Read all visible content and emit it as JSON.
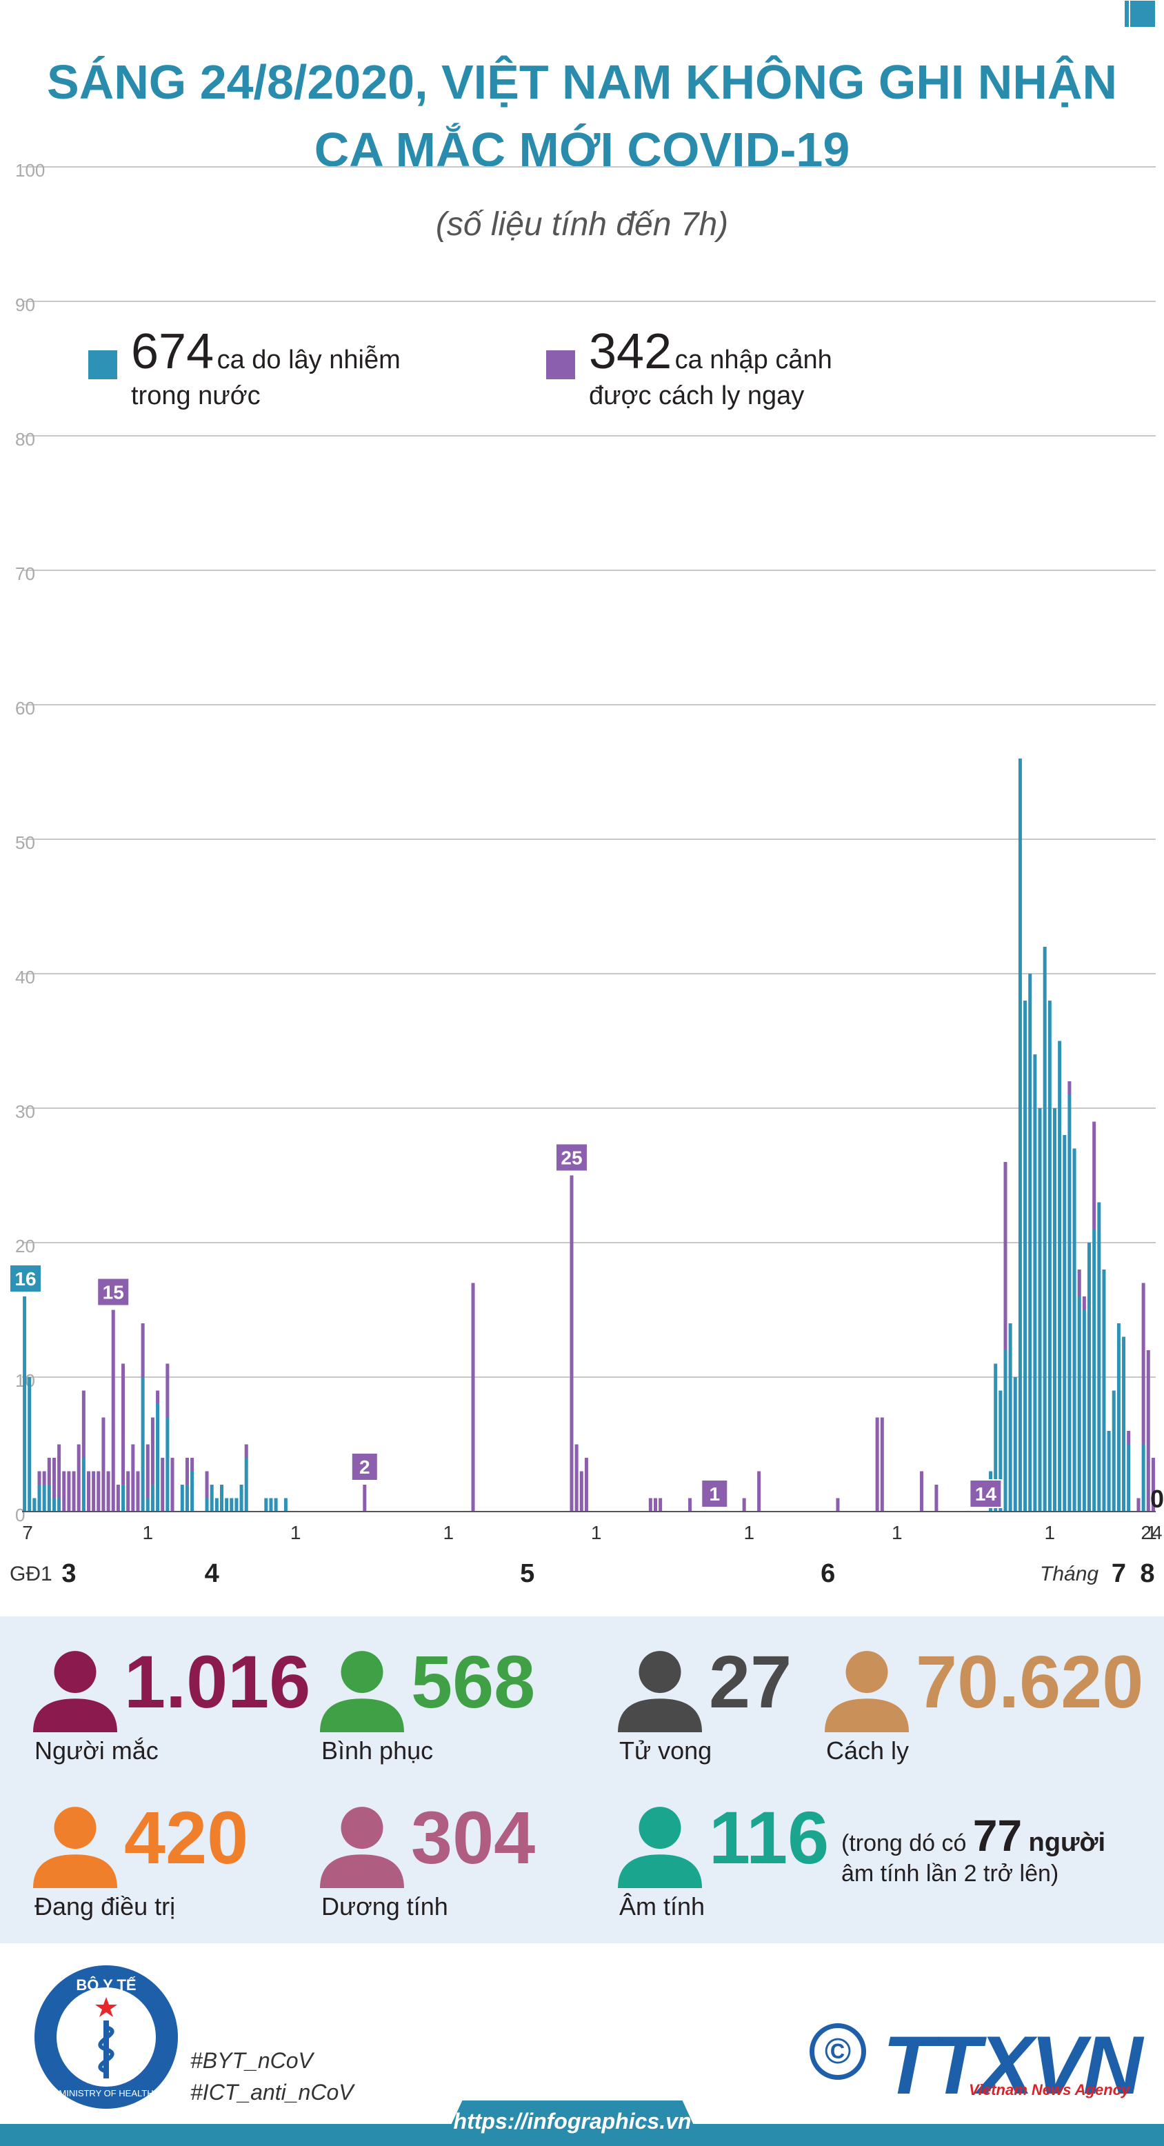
{
  "header": {
    "title_line1": "SÁNG 24/8/2020, VIỆT NAM KHÔNG GHI NHẬN",
    "title_line2": "CA MẮC MỚI COVID-19",
    "subtitle": "(số liệu tính đến 7h)"
  },
  "legend": {
    "domestic": {
      "number": "674",
      "text1": "ca do lây nhiễm",
      "text2": "trong nước",
      "color": "#2d92b5"
    },
    "imported": {
      "number": "342",
      "text1": "ca nhập cảnh",
      "text2": "được cách ly ngay",
      "color": "#8b5fad"
    }
  },
  "chart_data": {
    "type": "bar",
    "stacked": true,
    "ylim": [
      0,
      100
    ],
    "yticks": [
      0,
      10,
      20,
      30,
      40,
      50,
      60,
      70,
      80,
      90,
      100
    ],
    "grid": true,
    "legend_position": "top-left",
    "series": [
      {
        "name": "ca do lây nhiễm trong nước",
        "color": "#2d92b5",
        "values": [
          16,
          10,
          1,
          2,
          2,
          2,
          1,
          1,
          0,
          0,
          0,
          0,
          4,
          0,
          0,
          0,
          0,
          0,
          0,
          0,
          2,
          0,
          0,
          0,
          10,
          1,
          2,
          8,
          0,
          7,
          0,
          0,
          2,
          2,
          3,
          0,
          0,
          1,
          2,
          1,
          2,
          1,
          1,
          1,
          2,
          4,
          0,
          0,
          0,
          1,
          1,
          1,
          0,
          1,
          0,
          0,
          0,
          0,
          0,
          0,
          0,
          0,
          0,
          0,
          0,
          0,
          0,
          0,
          0,
          0,
          0,
          0,
          0,
          0,
          0,
          0,
          0,
          0,
          0,
          0,
          0,
          0,
          0,
          0,
          0,
          0,
          0,
          0,
          0,
          0,
          0,
          0,
          0,
          0,
          0,
          0,
          0,
          0,
          0,
          0,
          0,
          0,
          0,
          0,
          0,
          0,
          0,
          0,
          0,
          0,
          0,
          0,
          0,
          0,
          0,
          0,
          0,
          0,
          0,
          0,
          0,
          0,
          0,
          0,
          0,
          0,
          0,
          0,
          0,
          0,
          0,
          0,
          0,
          0,
          0,
          0,
          0,
          0,
          0,
          0,
          0,
          0,
          0,
          0,
          0,
          0,
          0,
          0,
          0,
          0,
          0,
          0,
          0,
          0,
          0,
          0,
          0,
          0,
          0,
          0,
          0,
          0,
          0,
          0,
          0,
          0,
          0,
          0,
          0,
          0,
          0,
          0,
          0,
          0,
          0,
          0,
          0,
          0,
          0,
          0,
          0,
          0,
          0,
          0,
          0,
          0,
          0,
          0,
          0,
          0,
          0,
          0,
          0,
          0,
          0,
          0,
          3,
          11,
          9,
          12,
          14,
          10,
          56,
          38,
          40,
          34,
          30,
          42,
          38,
          30,
          35,
          28,
          31,
          27,
          16,
          15,
          20,
          21,
          23,
          18,
          6,
          9,
          14,
          13,
          5,
          0,
          0,
          5,
          0,
          0
        ]
      },
      {
        "name": "ca nhập cảnh được cách ly ngay",
        "color": "#8b5fad",
        "values": [
          0,
          0,
          0,
          1,
          1,
          2,
          3,
          4,
          3,
          3,
          3,
          5,
          5,
          3,
          3,
          3,
          7,
          3,
          15,
          2,
          9,
          3,
          5,
          3,
          4,
          4,
          5,
          1,
          4,
          4,
          4,
          0,
          0,
          2,
          1,
          0,
          0,
          2,
          0,
          0,
          0,
          0,
          0,
          0,
          0,
          1,
          0,
          0,
          0,
          0,
          0,
          0,
          0,
          0,
          0,
          0,
          0,
          0,
          0,
          0,
          0,
          0,
          0,
          0,
          0,
          0,
          0,
          0,
          0,
          2,
          0,
          0,
          0,
          0,
          0,
          0,
          0,
          0,
          0,
          0,
          0,
          0,
          0,
          0,
          0,
          0,
          0,
          0,
          0,
          0,
          0,
          17,
          0,
          0,
          0,
          0,
          0,
          0,
          0,
          0,
          0,
          0,
          0,
          0,
          0,
          0,
          0,
          0,
          0,
          0,
          0,
          25,
          5,
          3,
          4,
          0,
          0,
          0,
          0,
          0,
          0,
          0,
          0,
          0,
          0,
          0,
          0,
          1,
          1,
          1,
          0,
          0,
          0,
          0,
          0,
          1,
          0,
          0,
          0,
          0,
          0,
          0,
          0,
          0,
          0,
          0,
          1,
          0,
          0,
          3,
          0,
          0,
          0,
          0,
          0,
          0,
          0,
          0,
          0,
          0,
          0,
          0,
          0,
          0,
          0,
          1,
          0,
          0,
          0,
          0,
          0,
          0,
          0,
          7,
          7,
          0,
          0,
          0,
          0,
          0,
          0,
          0,
          3,
          0,
          0,
          2,
          0,
          0,
          0,
          0,
          0,
          0,
          0,
          0,
          0,
          0,
          0,
          0,
          0,
          14,
          0,
          0,
          0,
          0,
          0,
          0,
          0,
          0,
          0,
          0,
          0,
          0,
          1,
          0,
          2,
          1,
          0,
          8,
          0,
          0,
          0,
          0,
          0,
          0,
          1,
          0,
          1,
          12,
          12,
          4,
          1,
          4,
          0,
          0,
          0,
          0,
          0,
          26,
          2,
          2,
          3,
          2,
          1,
          3,
          2,
          2,
          1,
          3,
          0,
          2,
          3,
          0,
          0,
          0,
          2,
          1,
          0,
          0,
          0,
          0,
          0,
          0
        ]
      }
    ],
    "bar_labels": [
      {
        "bar": 0,
        "text": "16",
        "series": 0
      },
      {
        "bar": 18,
        "text": "15",
        "series": 1
      },
      {
        "bar": 69,
        "text": "2",
        "series": 1
      },
      {
        "bar": 111,
        "text": "25",
        "series": 1
      },
      {
        "bar": 140,
        "text": "1",
        "series": 1
      },
      {
        "bar": 195,
        "text": "14",
        "series": 1
      },
      {
        "bar": 232,
        "text": "26",
        "series": 1
      },
      {
        "bar": 232,
        "text": "56",
        "series": 0
      },
      {
        "bar": 233,
        "text": "38",
        "series": 0
      },
      {
        "bar": 238,
        "text": "42",
        "series": 0
      },
      {
        "bar": 240,
        "text": "31",
        "series": 0
      },
      {
        "bar": 265,
        "text": "5",
        "series": 0
      },
      {
        "bar": 267,
        "text": "0",
        "series": 0
      }
    ],
    "x_day_ticks": [
      {
        "bar": 0,
        "label": "7"
      },
      {
        "bar": 25,
        "label": "1"
      },
      {
        "bar": 55,
        "label": "1"
      },
      {
        "bar": 86,
        "label": "1"
      },
      {
        "bar": 116,
        "label": "1"
      },
      {
        "bar": 147,
        "label": "1"
      },
      {
        "bar": 177,
        "label": "1"
      },
      {
        "bar": 208,
        "label": "1"
      },
      {
        "bar": 236,
        "label": "1"
      },
      {
        "bar": 267,
        "label": "24"
      }
    ],
    "x_month_labels": [
      {
        "bar": 9,
        "label": "3"
      },
      {
        "bar": 38,
        "label": "4"
      },
      {
        "bar": 102,
        "label": "5"
      },
      {
        "bar": 163,
        "label": "6"
      },
      {
        "bar": 222,
        "label": "7"
      },
      {
        "bar": 265,
        "label": "8"
      }
    ],
    "x_prefix": "GĐ1",
    "x_month_title": "Tháng"
  },
  "stats": [
    {
      "number": "1.016",
      "label": "Người mắc",
      "color": "#8b1a4e"
    },
    {
      "number": "568",
      "label": "Bình phục",
      "color": "#3fa046"
    },
    {
      "number": "27",
      "label": "Tử vong",
      "color": "#4a4a4a"
    },
    {
      "number": "70.620",
      "label": "Cách ly",
      "color": "#c99159"
    },
    {
      "number": "420",
      "label": "Đang điều trị",
      "color": "#f07f2c"
    },
    {
      "number": "304",
      "label": "Dương tính",
      "color": "#b05d82"
    },
    {
      "number": "116",
      "label": "Âm tính",
      "color": "#1aa58e"
    }
  ],
  "note": {
    "prefix": "(trong dó có",
    "number": "77",
    "suffix": "người",
    "line2": "âm tính lần 2 trở lên)"
  },
  "footer": {
    "logo_top": "BỘ Y TẾ",
    "logo_bottom": "MINISTRY OF HEALTH",
    "tag1": "#BYT_nCoV",
    "tag2": "#ICT_anti_nCoV",
    "url": "https://infographics.vn",
    "agency": "TTXVN",
    "agency_sub": "Vietnam News Agency",
    "copyright": "©"
  }
}
